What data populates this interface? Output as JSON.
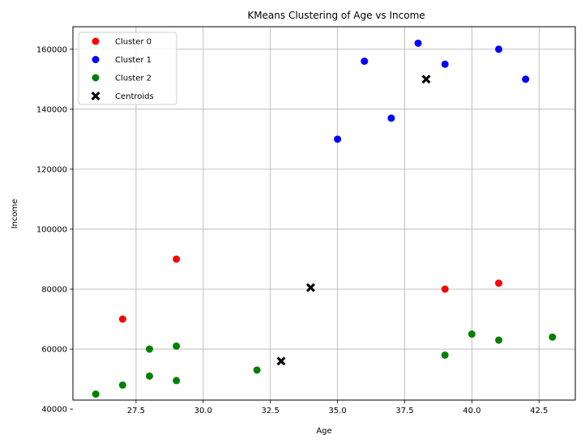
{
  "chart_data": {
    "type": "scatter",
    "title": "KMeans Clustering of Age vs Income",
    "xlabel": "Age",
    "ylabel": "Income",
    "xlim": [
      25.15,
      43.85
    ],
    "ylim": [
      43000,
      167500
    ],
    "xticks": [
      27.5,
      30.0,
      32.5,
      35.0,
      37.5,
      40.0,
      42.5
    ],
    "xtick_labels": [
      "27.5",
      "30.0",
      "32.5",
      "35.0",
      "37.5",
      "40.0",
      "42.5"
    ],
    "yticks": [
      40000,
      60000,
      80000,
      100000,
      120000,
      140000,
      160000
    ],
    "ytick_labels": [
      "40000",
      "60000",
      "80000",
      "100000",
      "120000",
      "140000",
      "160000"
    ],
    "grid": true,
    "legend_position": "top-left",
    "series": [
      {
        "name": "Cluster 0",
        "color": "#ff0000",
        "marker": "circle",
        "points": [
          [
            27,
            70000
          ],
          [
            29,
            90000
          ],
          [
            39,
            80000
          ],
          [
            41,
            82000
          ]
        ]
      },
      {
        "name": "Cluster 1",
        "color": "#0000ff",
        "marker": "circle",
        "points": [
          [
            35,
            130000
          ],
          [
            36,
            156000
          ],
          [
            37,
            137000
          ],
          [
            38,
            162000
          ],
          [
            39,
            155000
          ],
          [
            41,
            160000
          ],
          [
            42,
            150000
          ]
        ]
      },
      {
        "name": "Cluster 2",
        "color": "#008000",
        "marker": "circle",
        "points": [
          [
            26,
            45000
          ],
          [
            27,
            48000
          ],
          [
            28,
            60000
          ],
          [
            28,
            51000
          ],
          [
            29,
            61000
          ],
          [
            29,
            49500
          ],
          [
            32,
            53000
          ],
          [
            39,
            58000
          ],
          [
            40,
            65000
          ],
          [
            41,
            63000
          ],
          [
            43,
            64000
          ]
        ]
      },
      {
        "name": "Centroids",
        "color": "#000000",
        "marker": "x",
        "points": [
          [
            34.0,
            80500
          ],
          [
            38.3,
            150000
          ],
          [
            32.9,
            56000
          ]
        ]
      }
    ]
  }
}
